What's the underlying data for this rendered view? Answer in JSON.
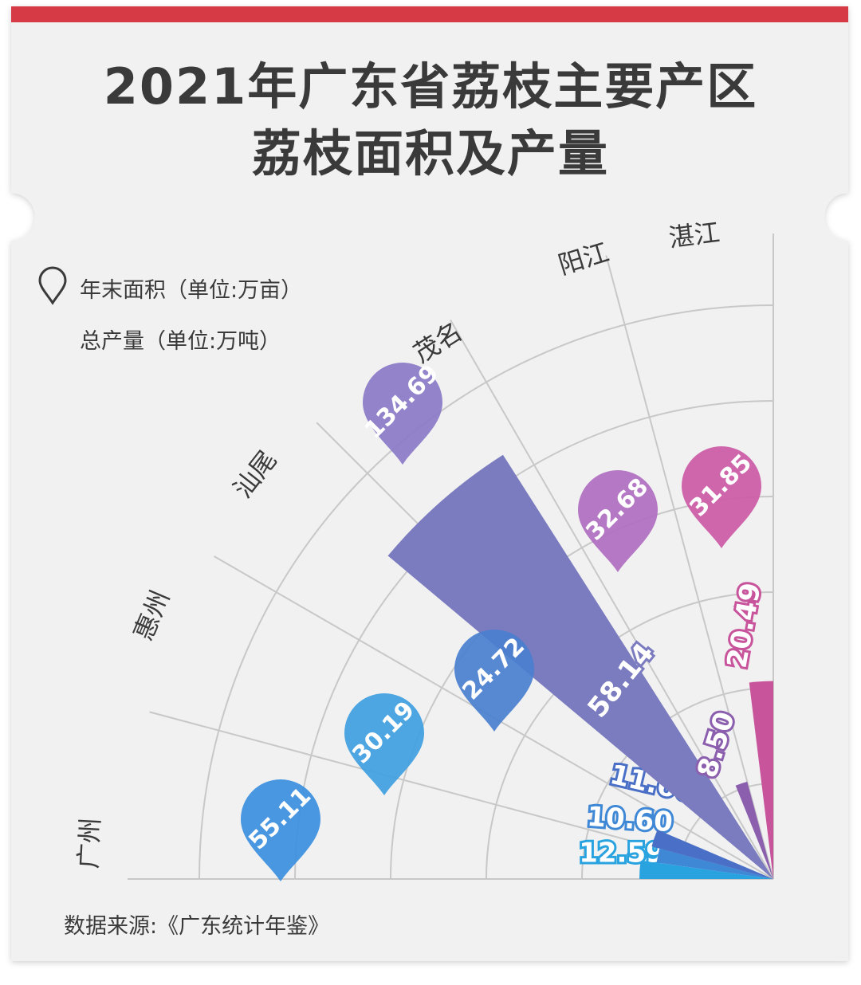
{
  "title_line1": "2021年广东省荔枝主要产区",
  "title_line2": "荔枝面积及产量",
  "legend": {
    "area_label": "年末面积（单位:万亩）",
    "output_label": "总产量（单位:万吨）"
  },
  "source": "数据来源:《广东统计年鉴》",
  "colors": {
    "top_bar": "#d53a45",
    "card_bg": "#f1f1f1",
    "grid": "#c8c8c8",
    "text": "#3a3a3a"
  },
  "chart_data": {
    "type": "polar-bar",
    "title": "2021年广东省荔枝主要产区荔枝面积及产量",
    "categories": [
      "广州",
      "惠州",
      "汕尾",
      "茂名",
      "阳江",
      "湛江"
    ],
    "series": [
      {
        "name": "年末面积（单位:万亩）",
        "values": [
          55.11,
          30.19,
          24.72,
          134.69,
          32.68,
          31.85
        ]
      },
      {
        "name": "总产量（单位:万吨）",
        "values": [
          12.59,
          10.6,
          11.6,
          58.14,
          8.5,
          20.49
        ]
      }
    ],
    "bar_series": "总产量（单位:万吨）",
    "pin_series": "年末面积（单位:万亩）",
    "category_colors": [
      "#29a3e0",
      "#3f88d6",
      "#4a6fc6",
      "#7b7cc0",
      "#8b5fad",
      "#c8549c"
    ],
    "pin_colors": [
      "#3b8fe0",
      "#3f9fe0",
      "#4a7fcf",
      "#8a7ac8",
      "#b06ec0",
      "#cc5aa6"
    ]
  }
}
